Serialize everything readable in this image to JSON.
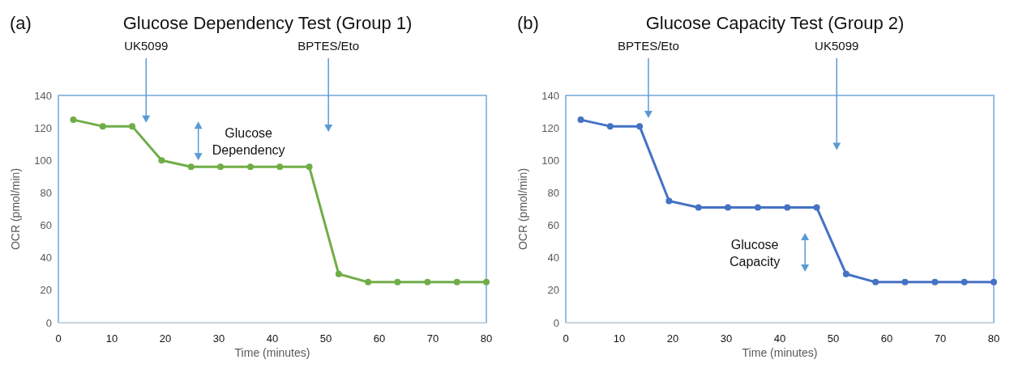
{
  "chart_data": [
    {
      "type": "line",
      "title": "Glucose Dependency Test (Group 1)",
      "xlabel": "Time (minutes)",
      "ylabel": "OCR (pmol/min)",
      "annotations": [
        "(a)",
        "UK5099",
        "BPTES/Eto",
        "Glucose Dependency"
      ],
      "x": [
        2.8,
        8.3,
        13.8,
        19.3,
        24.8,
        30.3,
        35.9,
        41.4,
        46.9,
        52.4,
        57.9,
        63.4,
        69,
        74.5,
        80
      ],
      "series": [
        {
          "color": "#70ad47",
          "values": [
            125,
            121,
            121,
            100,
            96,
            96,
            96,
            96,
            96,
            30,
            25,
            25,
            25,
            25,
            25
          ]
        }
      ],
      "xlim": [
        0,
        80
      ],
      "xticks": [
        0,
        10,
        20,
        30,
        40,
        50,
        60,
        70,
        80
      ],
      "ylim": [
        0,
        140
      ],
      "yticks": [
        0,
        20,
        40,
        60,
        80,
        100,
        120,
        140
      ],
      "marker": "circle",
      "line_style": "solid",
      "grid": false
    },
    {
      "type": "line",
      "title": "Glucose Capacity Test (Group 2)",
      "xlabel": "Time (minutes)",
      "ylabel": "OCR (pmol/min)",
      "annotations": [
        "(b)",
        "BPTES/Eto",
        "UK5099",
        "Glucose Capacity"
      ],
      "x": [
        2.8,
        8.3,
        13.8,
        19.3,
        24.8,
        30.3,
        35.9,
        41.4,
        46.9,
        52.4,
        57.9,
        63.4,
        69,
        74.5,
        80
      ],
      "series": [
        {
          "color": "#4472c4",
          "values": [
            125,
            121,
            121,
            75,
            71,
            71,
            71,
            71,
            71,
            30,
            25,
            25,
            25,
            25,
            25
          ]
        }
      ],
      "xlim": [
        0,
        80
      ],
      "xticks": [
        0,
        10,
        20,
        30,
        40,
        50,
        60,
        70,
        80
      ],
      "ylim": [
        0,
        140
      ],
      "yticks": [
        0,
        20,
        40,
        60,
        80,
        100,
        120,
        140
      ],
      "marker": "circle",
      "line_style": "solid",
      "grid": false
    }
  ]
}
